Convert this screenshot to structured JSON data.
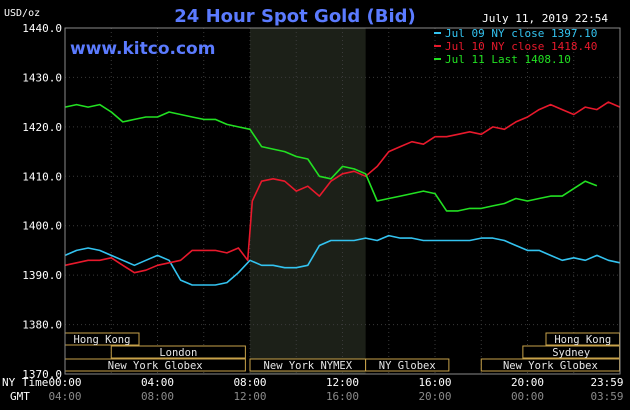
{
  "header": {
    "title": "24 Hour Spot Gold (Bid)",
    "site": "www.kitco.com",
    "timestamp": "July 11, 2019 22:54",
    "units": "USD/oz"
  },
  "legend": [
    {
      "label": "Jul 09 NY close 1397.10",
      "color": "#33c3f0"
    },
    {
      "label": "Jul 10 NY close 1418.40",
      "color": "#e8192c"
    },
    {
      "label": "Jul 11 Last 1408.10",
      "color": "#22e022"
    }
  ],
  "bands": [
    {
      "label": "Hong Kong",
      "start": 0,
      "end": 3.2
    },
    {
      "label": "London",
      "start": 2.0,
      "end": 7.8
    },
    {
      "label": "New York Globex",
      "start": 0,
      "end": 7.8
    },
    {
      "label": "New York NYMEX",
      "start": 8.0,
      "end": 13.0
    },
    {
      "label": "NY Globex",
      "start": 13.0,
      "end": 16.6
    },
    {
      "label": "Hong Kong",
      "start": 20.8,
      "end": 23.98
    },
    {
      "label": "Sydney",
      "start": 19.8,
      "end": 23.98
    },
    {
      "label": "New York Globex",
      "start": 18.0,
      "end": 23.98
    }
  ],
  "axis_labels": {
    "ny_time": "NY Time",
    "gmt": "GMT",
    "ny_ticks": [
      "00:00",
      "04:00",
      "08:00",
      "12:00",
      "16:00",
      "20:00",
      "23:59"
    ],
    "gmt_ticks": [
      "04:00",
      "08:00",
      "12:00",
      "16:00",
      "20:00",
      "00:00",
      "03:59"
    ]
  },
  "chart_data": {
    "type": "line",
    "title": "24 Hour Spot Gold (Bid)",
    "ylabel": "USD/oz",
    "xlabel": "NY Time",
    "ylim": [
      1370,
      1440
    ],
    "xlim": [
      0,
      24
    ],
    "grid": true,
    "yticks": [
      "1440.0",
      "1430.0",
      "1420.0",
      "1410.0",
      "1400.0",
      "1390.0",
      "1380.0",
      "1370.0"
    ],
    "shaded_region": {
      "x": [
        8,
        13
      ]
    },
    "series": [
      {
        "name": "Jul 09 NY close 1397.10",
        "color": "#33c3f0",
        "x": [
          0,
          0.5,
          1,
          1.5,
          2,
          2.5,
          3,
          3.5,
          4,
          4.5,
          5,
          5.5,
          6,
          6.5,
          7,
          7.5,
          8,
          8.5,
          9,
          9.5,
          10,
          10.5,
          11,
          11.5,
          12,
          12.5,
          13,
          13.5,
          14,
          14.5,
          15,
          15.5,
          16,
          16.5,
          17,
          17.5,
          18,
          18.5,
          19,
          19.5,
          20,
          20.5,
          21,
          21.5,
          22,
          22.5,
          23,
          23.5,
          24
        ],
        "y": [
          1394,
          1395,
          1395.5,
          1395,
          1394,
          1393,
          1392,
          1393,
          1394,
          1393,
          1389,
          1388,
          1388,
          1388,
          1388.5,
          1390.5,
          1393,
          1392,
          1392,
          1391.5,
          1391.5,
          1392,
          1396,
          1397,
          1397,
          1397,
          1397.5,
          1397,
          1398,
          1397.5,
          1397.5,
          1397,
          1397,
          1397,
          1397,
          1397,
          1397.5,
          1397.5,
          1397,
          1396,
          1395,
          1395,
          1394,
          1393,
          1393.5,
          1393,
          1394,
          1393,
          1392.5
        ]
      },
      {
        "name": "Jul 10 NY close 1418.40",
        "color": "#e8192c",
        "x": [
          0,
          0.5,
          1,
          1.5,
          2,
          2.5,
          3,
          3.5,
          4,
          4.5,
          5,
          5.5,
          6,
          6.5,
          7,
          7.5,
          7.9,
          8.1,
          8.5,
          9,
          9.5,
          10,
          10.5,
          11,
          11.5,
          12,
          12.5,
          13,
          13.5,
          14,
          14.5,
          15,
          15.5,
          16,
          16.5,
          17,
          17.5,
          18,
          18.5,
          19,
          19.5,
          20,
          20.5,
          21,
          21.5,
          22,
          22.5,
          23,
          23.5,
          24
        ],
        "y": [
          1392,
          1392.5,
          1393,
          1393,
          1393.5,
          1392,
          1390.5,
          1391,
          1392,
          1392.5,
          1393,
          1395,
          1395,
          1395,
          1394.5,
          1395.5,
          1393,
          1405,
          1409,
          1409.5,
          1409,
          1407,
          1408,
          1406,
          1409,
          1410.5,
          1411,
          1410,
          1412,
          1415,
          1416,
          1417,
          1416.5,
          1418,
          1418,
          1418.5,
          1419,
          1418.5,
          1420,
          1419.5,
          1421,
          1422,
          1423.5,
          1424.5,
          1423.5,
          1422.5,
          1424,
          1423.5,
          1425,
          1424
        ]
      },
      {
        "name": "Jul 11 Last 1408.10",
        "color": "#22e022",
        "x": [
          0,
          0.5,
          1,
          1.5,
          2,
          2.5,
          3,
          3.5,
          4,
          4.5,
          5,
          5.5,
          6,
          6.5,
          7,
          7.5,
          8,
          8.5,
          9,
          9.5,
          10,
          10.5,
          11,
          11.5,
          12,
          12.5,
          13,
          13.5,
          14,
          14.5,
          15,
          15.5,
          16,
          16.5,
          17,
          17.5,
          18,
          18.5,
          19,
          19.5,
          20,
          20.5,
          21,
          21.5,
          22,
          22.5,
          23
        ],
        "y": [
          1424,
          1424.5,
          1424,
          1424.5,
          1423,
          1421,
          1421.5,
          1422,
          1422,
          1423,
          1422.5,
          1422,
          1421.5,
          1421.5,
          1420.5,
          1420,
          1419.5,
          1416,
          1415.5,
          1415,
          1414,
          1413.5,
          1410,
          1409.5,
          1412,
          1411.5,
          1410.5,
          1405,
          1405.5,
          1406,
          1406.5,
          1407,
          1406.5,
          1403,
          1403,
          1403.5,
          1403.5,
          1404,
          1404.5,
          1405.5,
          1405,
          1405.5,
          1406,
          1406,
          1407.5,
          1409,
          1408.1
        ]
      }
    ]
  }
}
